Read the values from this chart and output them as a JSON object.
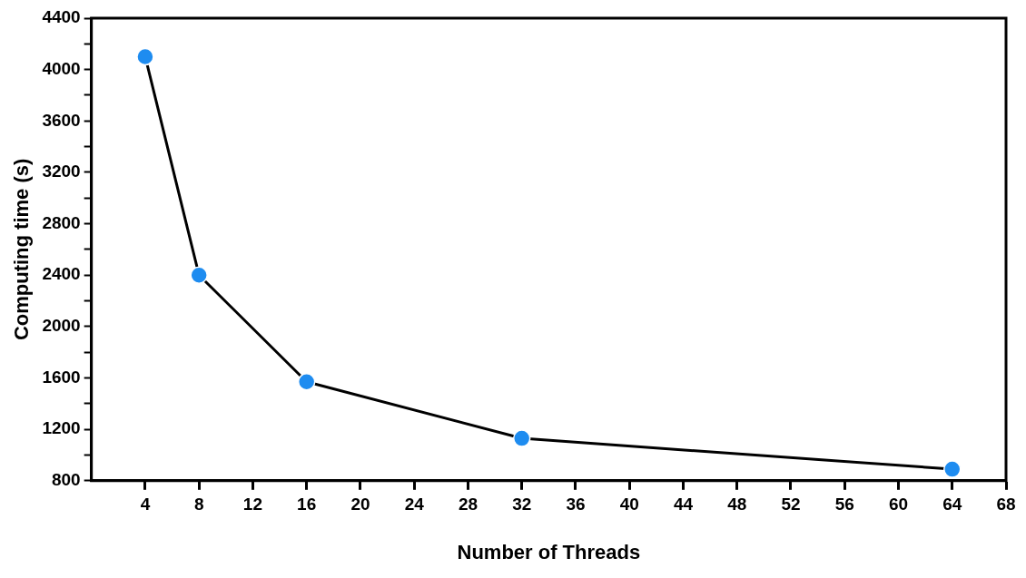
{
  "chart_data": {
    "type": "line",
    "xlabel": "Number of Threads",
    "ylabel": "Computing time (s)",
    "x": [
      4,
      8,
      16,
      32,
      64
    ],
    "series": [
      {
        "color": "#1e8cf0",
        "values": [
          4100,
          2400,
          1570,
          1130,
          890
        ]
      }
    ],
    "xlim": [
      0,
      68
    ],
    "xticks": [
      4,
      8,
      12,
      16,
      20,
      24,
      28,
      32,
      36,
      40,
      44,
      48,
      52,
      56,
      60,
      64,
      68
    ],
    "ylim": [
      800,
      4400
    ],
    "yticks": [
      800,
      {
        "value": 1000,
        "label": null
      },
      1200,
      {
        "value": 1400,
        "label": null
      },
      1600,
      {
        "value": 1800,
        "label": null
      },
      2000,
      {
        "value": 2200,
        "label": null
      },
      2400,
      {
        "value": 2600,
        "label": null
      },
      2800,
      {
        "value": 3000,
        "label": null
      },
      3200,
      {
        "value": 3400,
        "label": null
      },
      3600,
      {
        "value": 3800,
        "label": null
      },
      4000,
      {
        "value": 4200,
        "label": null
      },
      4400
    ],
    "marker": "circle",
    "line_style": "solid",
    "grid": false,
    "legend": false
  }
}
